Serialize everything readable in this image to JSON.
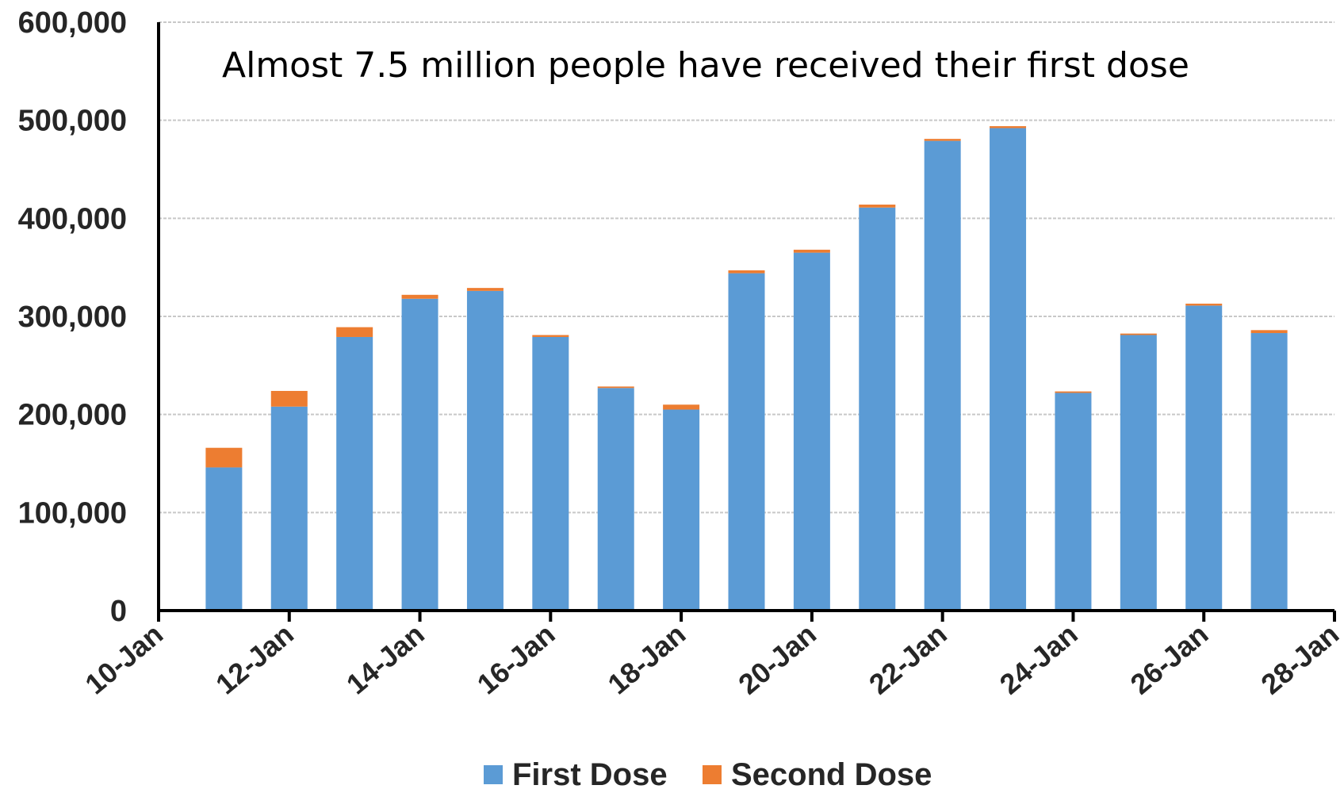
{
  "chart_data": {
    "type": "bar",
    "stacked": true,
    "annotation": "Almost 7.5 million people have received their first dose",
    "x_tick_labels": [
      "10-Jan",
      "12-Jan",
      "14-Jan",
      "16-Jan",
      "18-Jan",
      "20-Jan",
      "22-Jan",
      "24-Jan",
      "26-Jan",
      "28-Jan"
    ],
    "y_tick_labels": [
      "0",
      "100,000",
      "200,000",
      "300,000",
      "400,000",
      "500,000",
      "600,000"
    ],
    "ylim": [
      0,
      600000
    ],
    "grid": true,
    "legend_position": "bottom",
    "categories": [
      "11-Jan",
      "12-Jan",
      "13-Jan",
      "14-Jan",
      "15-Jan",
      "16-Jan",
      "17-Jan",
      "18-Jan",
      "19-Jan",
      "20-Jan",
      "21-Jan",
      "22-Jan",
      "23-Jan",
      "24-Jan",
      "25-Jan",
      "26-Jan",
      "27-Jan"
    ],
    "series": [
      {
        "name": "First Dose",
        "color": "#5b9bd5",
        "values": [
          146000,
          208000,
          279000,
          318000,
          326000,
          279000,
          227000,
          205000,
          344000,
          365000,
          411000,
          479000,
          492000,
          222000,
          281000,
          311000,
          283000
        ]
      },
      {
        "name": "Second Dose",
        "color": "#ed7d31",
        "values": [
          20000,
          16000,
          10000,
          4000,
          3000,
          2000,
          1500,
          5000,
          3000,
          3000,
          3000,
          2000,
          2000,
          1500,
          1500,
          2000,
          3000
        ]
      }
    ]
  }
}
